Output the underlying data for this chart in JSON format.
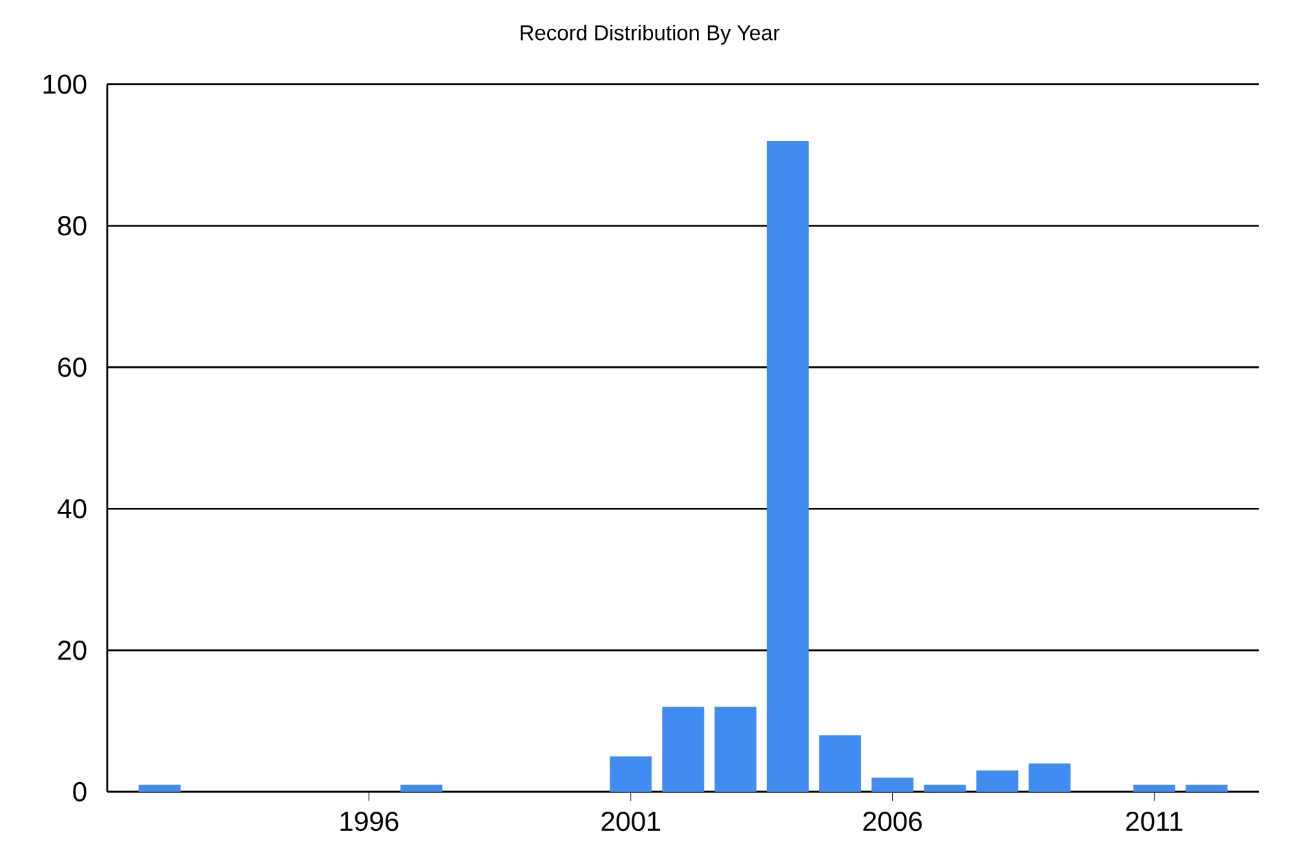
{
  "chart_data": {
    "type": "bar",
    "title": "Record Distribution By Year",
    "x": [
      1992,
      1997,
      2001,
      2002,
      2003,
      2004,
      2005,
      2006,
      2007,
      2008,
      2009,
      2011,
      2012
    ],
    "values": [
      1,
      1,
      5,
      12,
      12,
      92,
      8,
      2,
      1,
      3,
      4,
      1,
      1
    ],
    "color": "#418cf0",
    "xlim": [
      1991,
      2013
    ],
    "xticks": [
      1996,
      2001,
      2006,
      2011
    ],
    "ylim": [
      0,
      100
    ],
    "yticks": [
      0,
      20,
      40,
      60,
      80,
      100
    ],
    "grid": "y"
  }
}
